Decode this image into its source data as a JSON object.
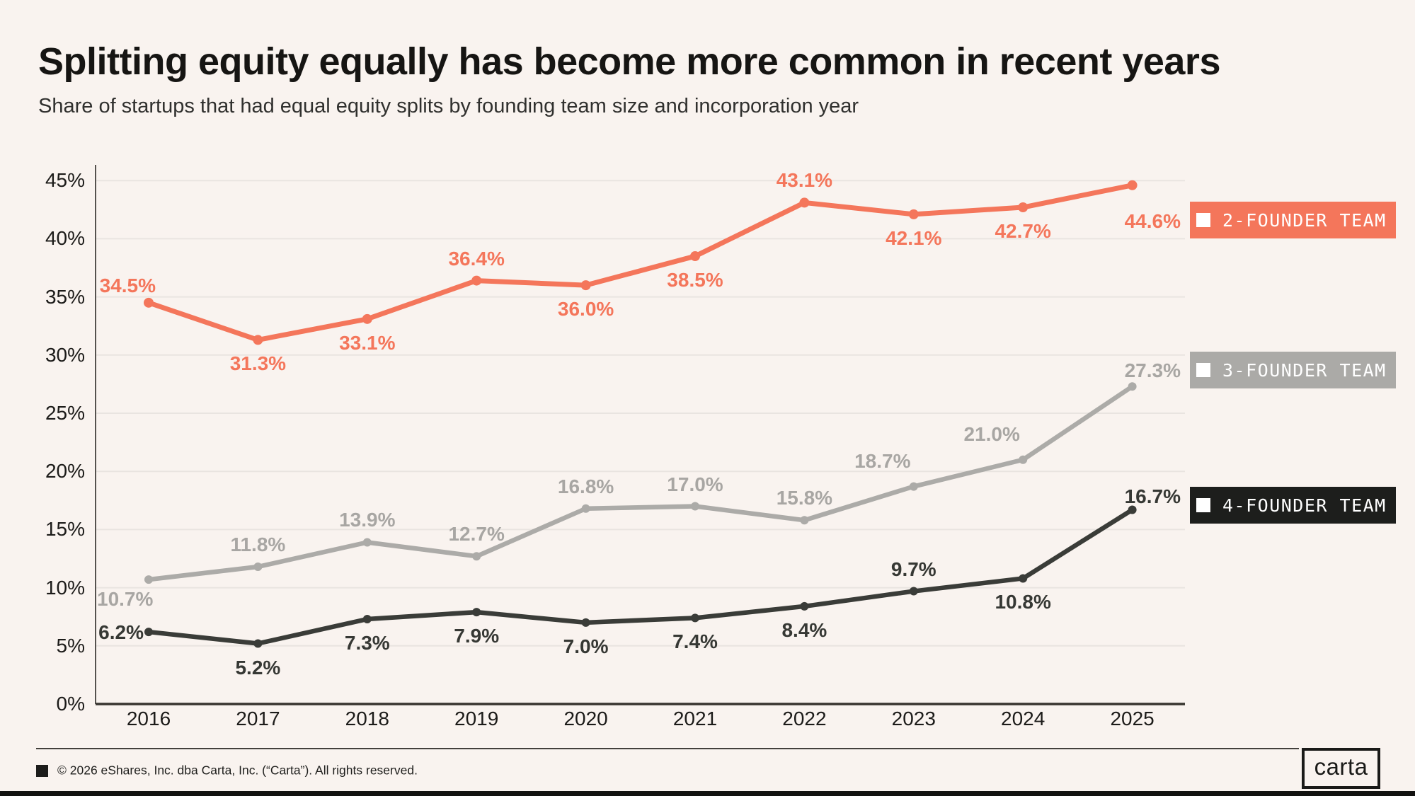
{
  "chart_data": {
    "type": "line",
    "title": "Splitting equity equally has become more common in recent years",
    "subtitle": "Share of startups that had equal equity splits by founding team size and incorporation year",
    "categories": [
      "2016",
      "2017",
      "2018",
      "2019",
      "2020",
      "2021",
      "2022",
      "2023",
      "2024",
      "2025"
    ],
    "xlabel": "",
    "ylabel": "",
    "ylim": [
      0,
      45
    ],
    "y_tick_step": 5,
    "y_tick_labels": [
      "0%",
      "5%",
      "10%",
      "15%",
      "20%",
      "25%",
      "30%",
      "35%",
      "40%",
      "45%"
    ],
    "grid": "horizontal",
    "legend_position": "right",
    "series": [
      {
        "name": "2-FOUNDER TEAM",
        "color": "#F4765B",
        "values": [
          34.5,
          31.3,
          33.1,
          36.4,
          36.0,
          38.5,
          43.1,
          42.1,
          42.7,
          44.6
        ],
        "labels": [
          "34.5%",
          "31.3%",
          "33.1%",
          "36.4%",
          "36.0%",
          "38.5%",
          "43.1%",
          "42.1%",
          "42.7%",
          "44.6%"
        ]
      },
      {
        "name": "3-FOUNDER TEAM",
        "color": "#ACABA8",
        "values": [
          10.7,
          11.8,
          13.9,
          12.7,
          16.8,
          17.0,
          15.8,
          18.7,
          21.0,
          27.3
        ],
        "labels": [
          "10.7%",
          "11.8%",
          "13.9%",
          "12.7%",
          "16.8%",
          "17.0%",
          "15.8%",
          "18.7%",
          "21.0%",
          "27.3%"
        ]
      },
      {
        "name": "4-FOUNDER TEAM",
        "color": "#3A3C38",
        "values": [
          6.2,
          5.2,
          7.3,
          7.9,
          7.0,
          7.4,
          8.4,
          9.7,
          10.8,
          16.7
        ],
        "labels": [
          "6.2%",
          "5.2%",
          "7.3%",
          "7.9%",
          "7.0%",
          "7.4%",
          "8.4%",
          "9.7%",
          "10.8%",
          "16.7%"
        ]
      }
    ],
    "legend": [
      {
        "label": "2-FOUNDER TEAM",
        "color": "#F4765B",
        "text_color": "#FFFFFF"
      },
      {
        "label": "3-FOUNDER TEAM",
        "color": "#ABAAA7",
        "text_color": "#FFFFFF"
      },
      {
        "label": "4-FOUNDER TEAM",
        "color": "#1D1E1C",
        "text_color": "#FFFFFF"
      }
    ]
  },
  "footer": {
    "copyright": "© 2026 eShares, Inc. dba Carta, Inc. (“Carta”). All rights reserved.",
    "logo_text": "carta"
  }
}
